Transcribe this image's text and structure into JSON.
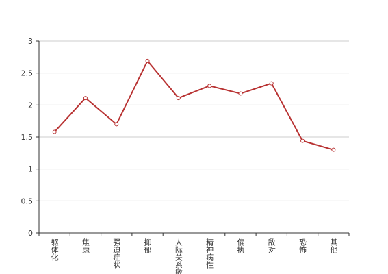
{
  "chart_data": {
    "type": "line",
    "categories": [
      "躯体化",
      "焦虑",
      "强迫症状",
      "抑郁",
      "人际关系敏感",
      "精神病性",
      "偏执",
      "敌对",
      "恐怖",
      "其他"
    ],
    "values": [
      1.58,
      2.11,
      1.7,
      2.69,
      2.11,
      2.3,
      2.18,
      2.34,
      1.44,
      1.3
    ],
    "color": "#b83232",
    "ylim": [
      0,
      3
    ],
    "yticks": [
      0,
      0.5,
      1,
      1.5,
      2,
      2.5,
      3
    ],
    "grid": true
  }
}
